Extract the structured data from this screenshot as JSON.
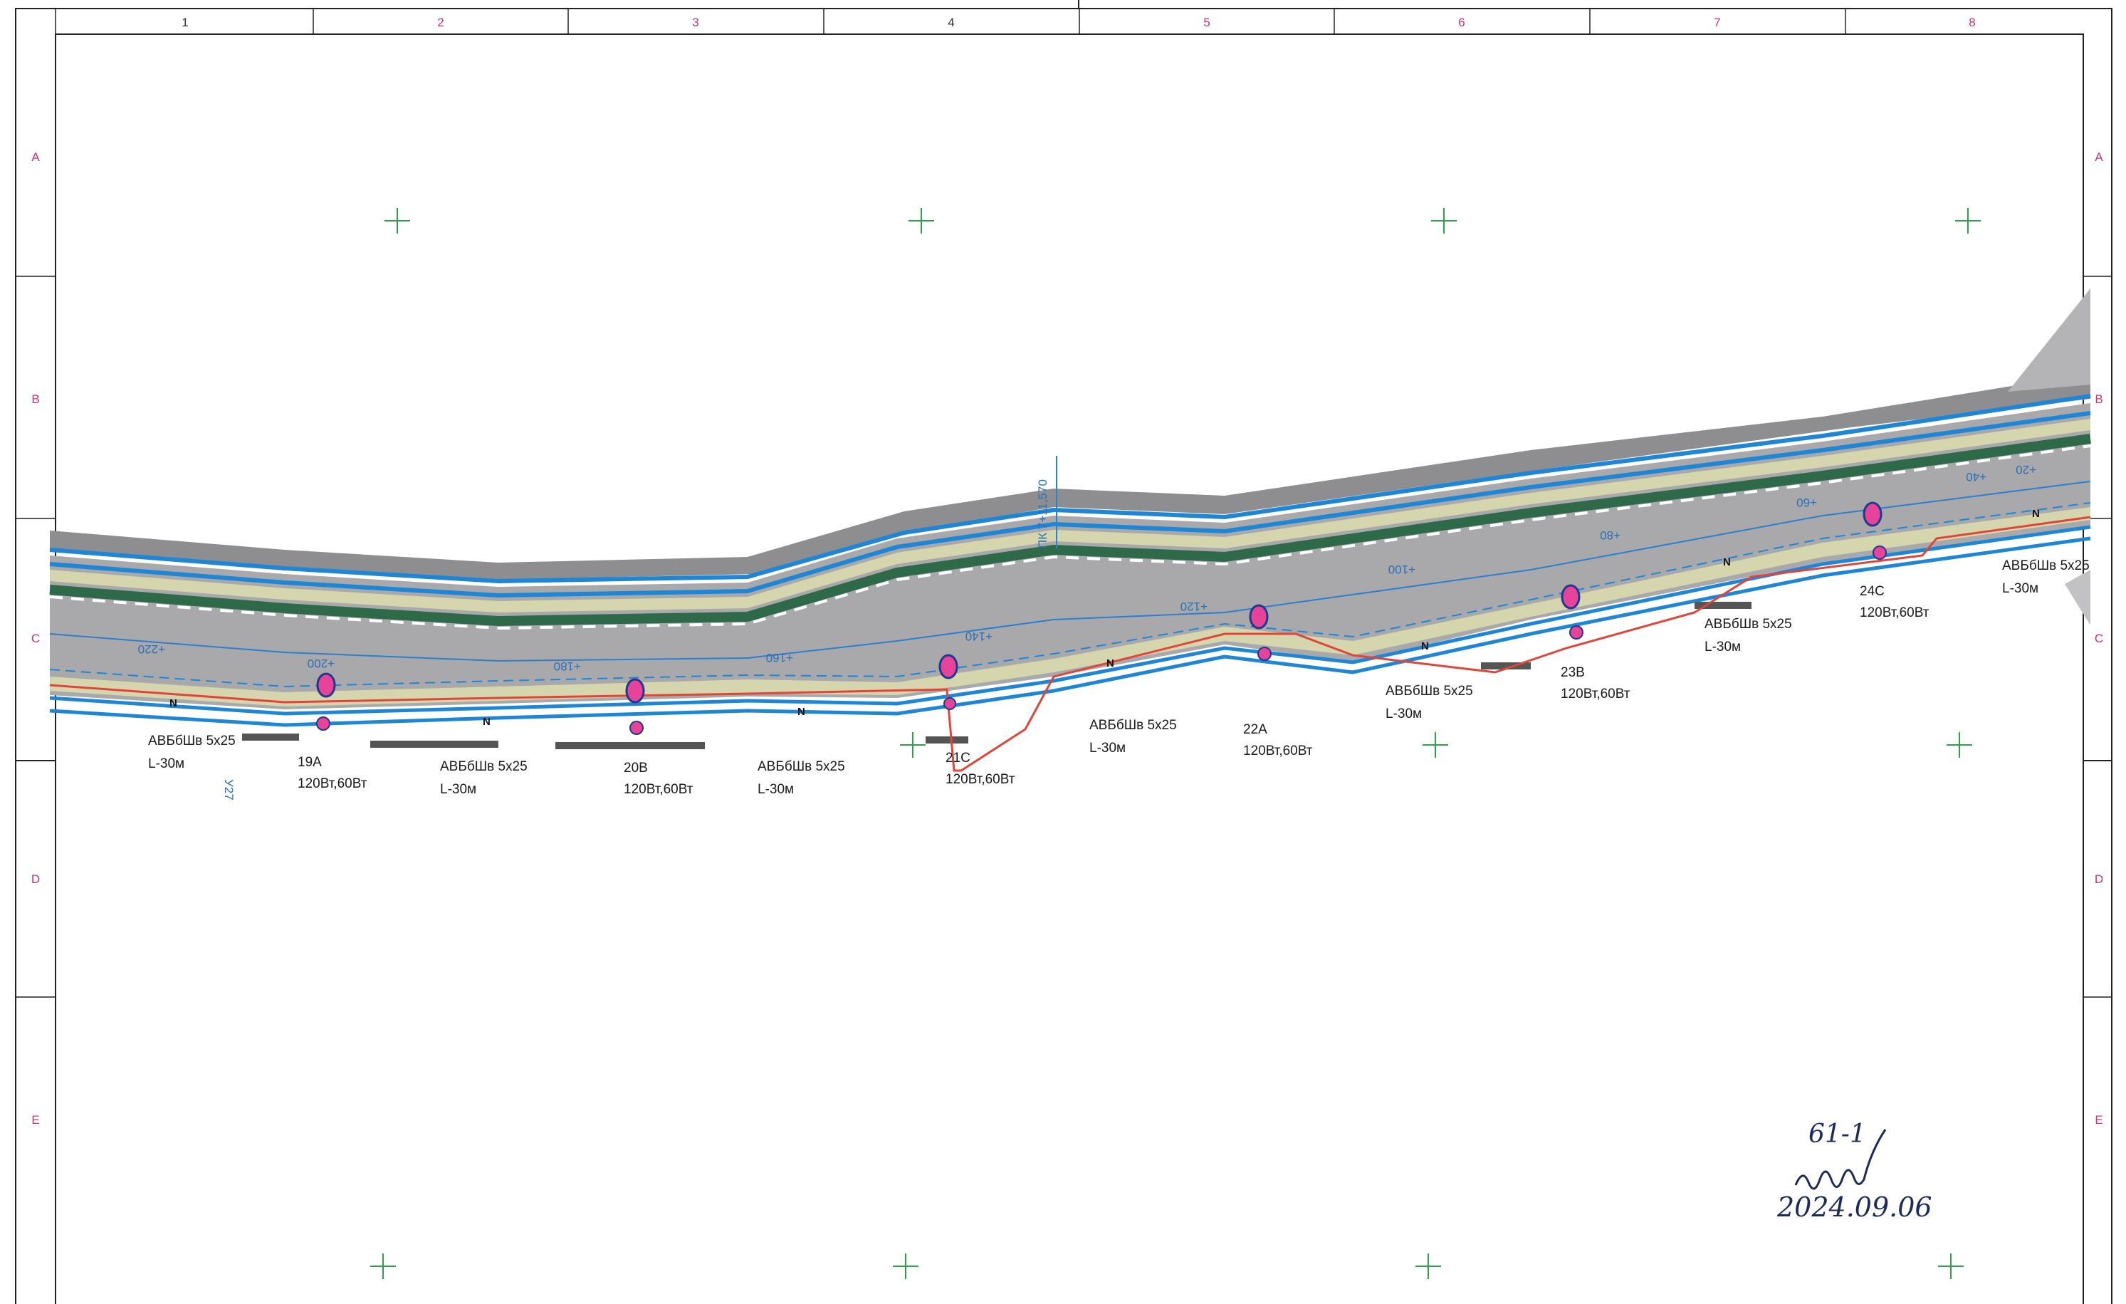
{
  "sheet": {
    "column_labels": [
      "1",
      "2",
      "3",
      "4",
      "5",
      "6",
      "7",
      "8"
    ],
    "row_labels": [
      "A",
      "B",
      "C",
      "D",
      "E"
    ]
  },
  "road": {
    "chainage_label": "ПК 7+11,570",
    "stations": [
      "+220",
      "+200",
      "+180",
      "+160",
      "+140",
      "+120",
      "+100",
      "+80",
      "+60",
      "+40",
      "+20"
    ],
    "side_label": "У27",
    "colors": {
      "edge_blue": "#1f86d6",
      "asphalt": "#a9a9ab",
      "shoulder": "#d8d8b0",
      "median_green": "#2e6a4a",
      "cable_red": "#e0453a",
      "lamp_pink": "#e8439a",
      "grid_green": "#2ca24b"
    }
  },
  "cables": [
    {
      "line1": "АВБбШв 5х25",
      "line2": "L-30м"
    },
    {
      "line1": "АВБбШв 5х25",
      "line2": "L-30м"
    },
    {
      "line1": "АВБбШв 5х25",
      "line2": "L-30м"
    },
    {
      "line1": "АВБбШв 5х25",
      "line2": "L-30м"
    },
    {
      "line1": "АВБбШв 5х25",
      "line2": "L-30м"
    },
    {
      "line1": "АВБбШв 5х25",
      "line2": "L-30м"
    },
    {
      "line1": "АВБбШв 5х25",
      "line2": "L-30м"
    }
  ],
  "lamps": [
    {
      "id": "19A",
      "power": "120Вт,60Вт"
    },
    {
      "id": "20B",
      "power": "120Вт,60Вт"
    },
    {
      "id": "21C",
      "power": "120Вт,60Вт"
    },
    {
      "id": "22A",
      "power": "120Вт,60Вт"
    },
    {
      "id": "23B",
      "power": "120Вт,60Вт"
    },
    {
      "id": "24C",
      "power": "120Вт,60Вт"
    }
  ],
  "phase_marker": "N",
  "signature": {
    "line1": "61-1",
    "line2": "",
    "date": "2024.09.06"
  }
}
